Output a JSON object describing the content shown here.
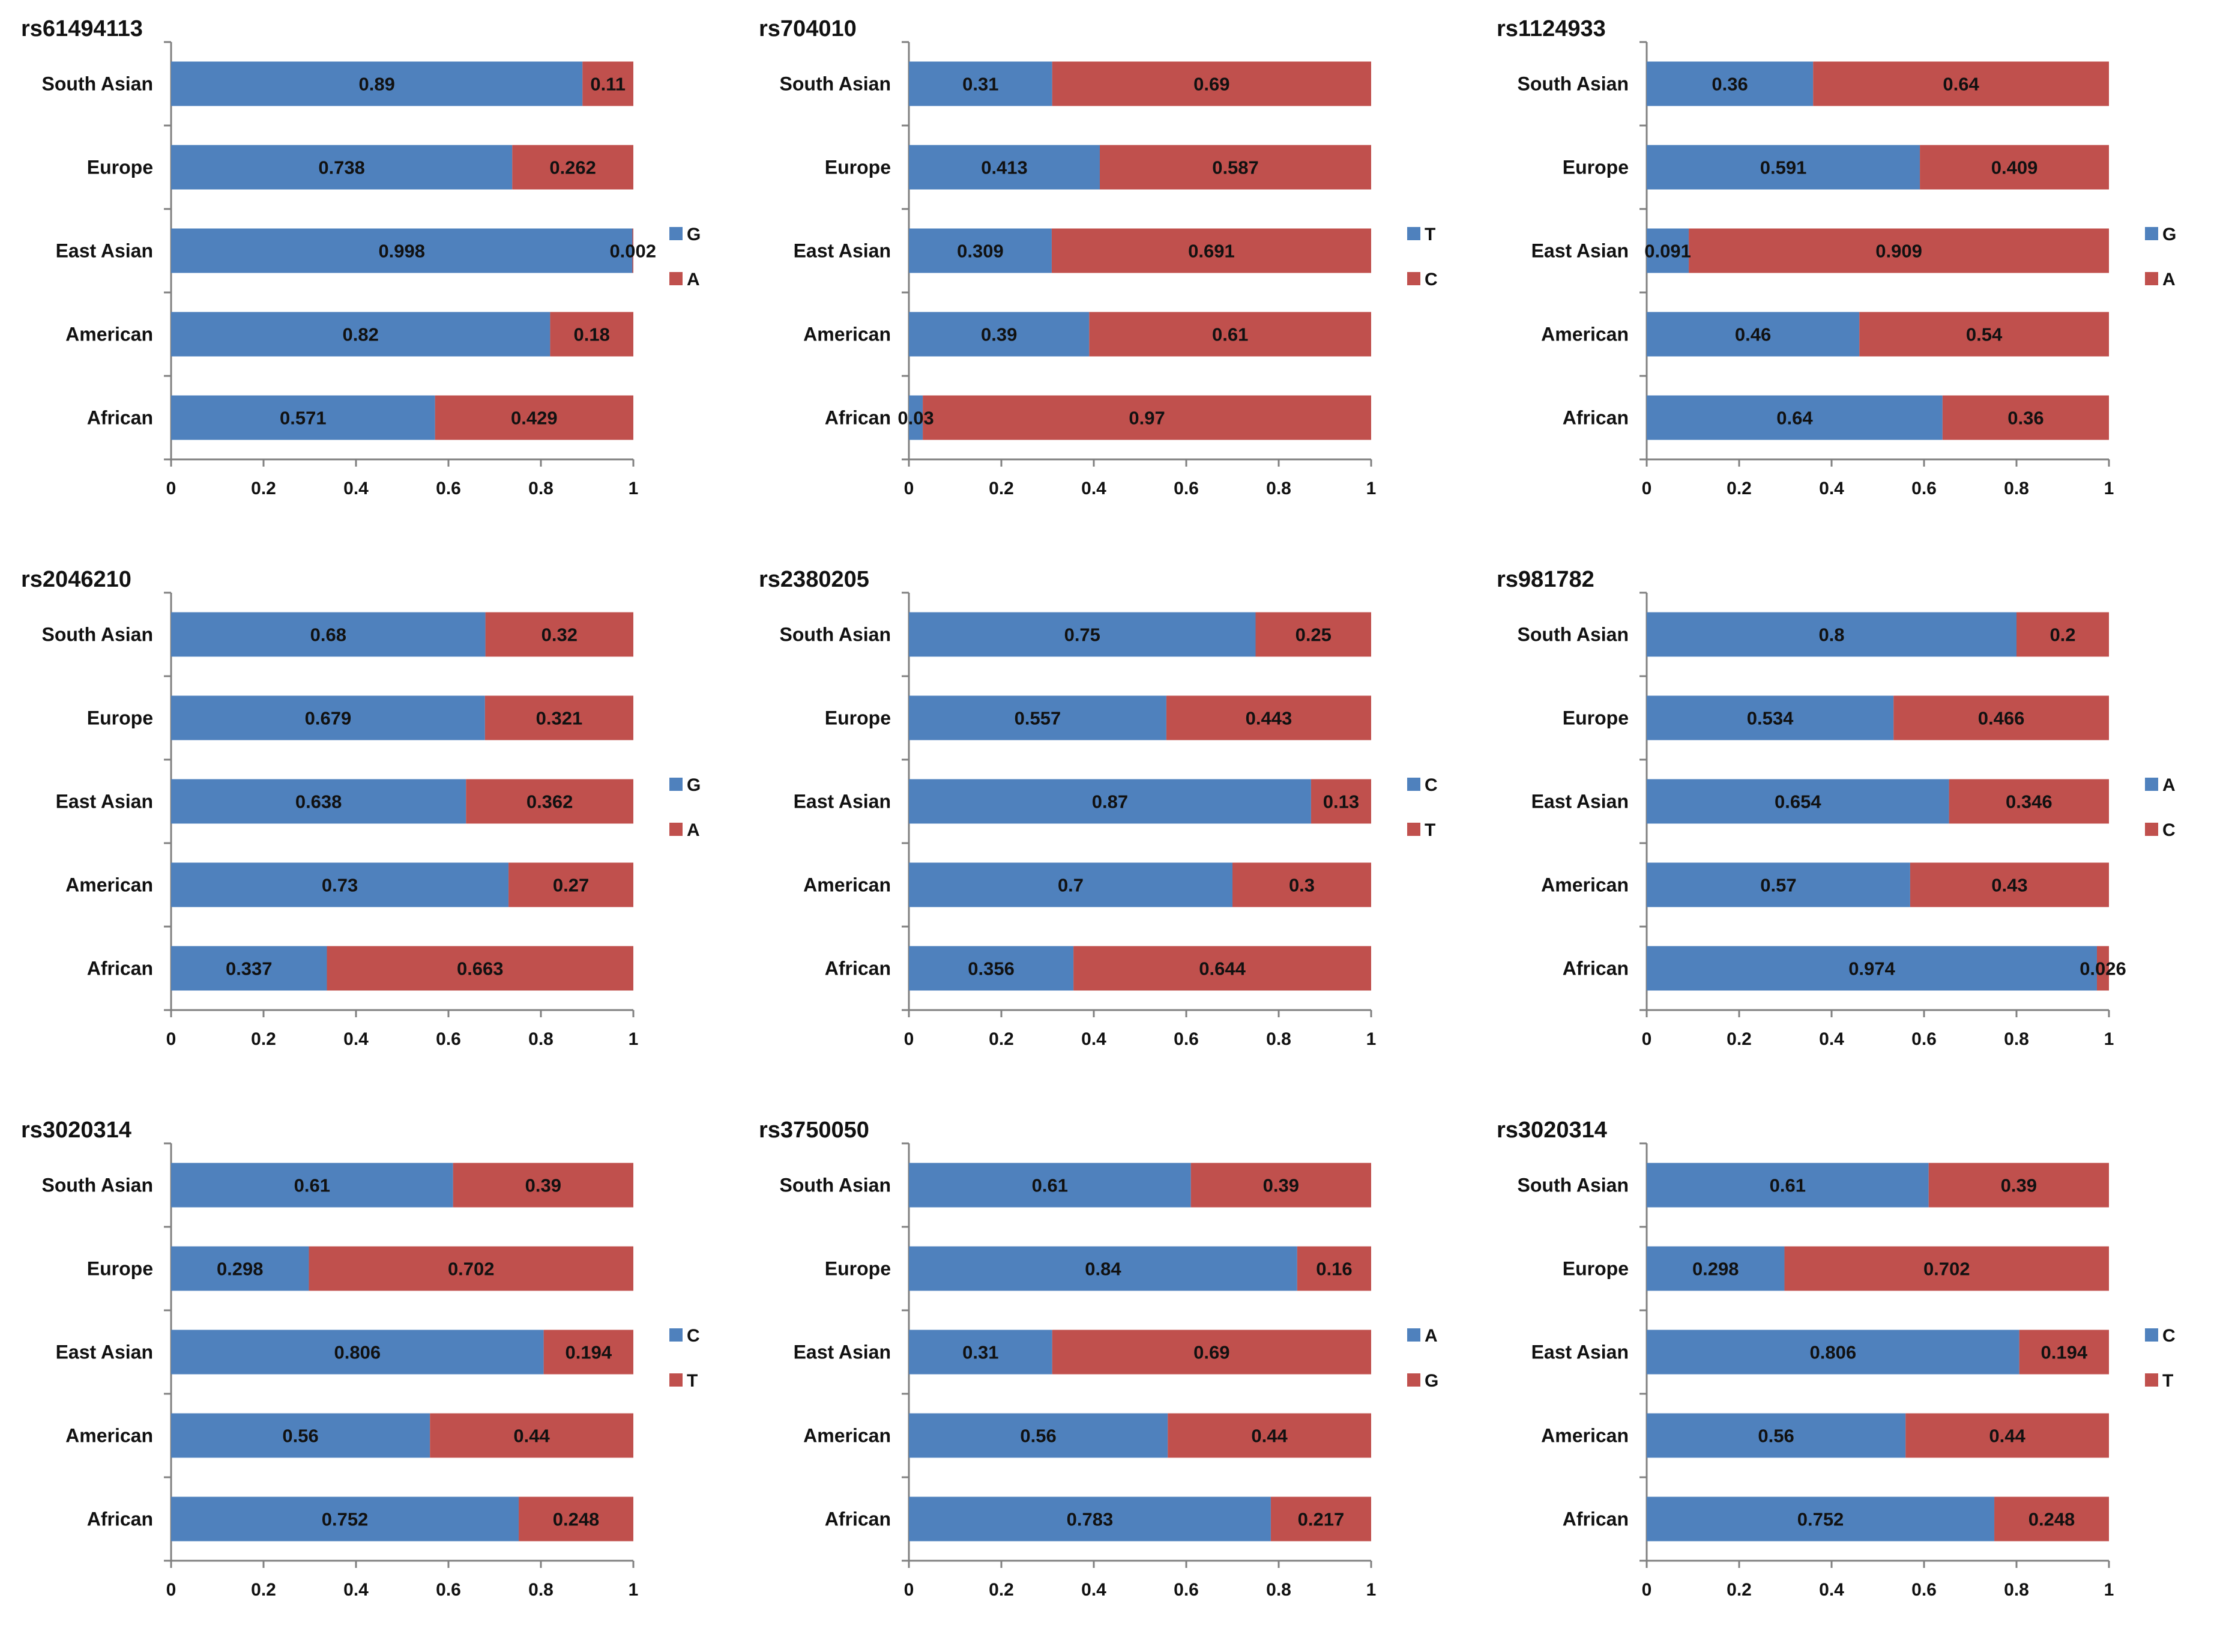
{
  "chart_data": [
    {
      "type": "bar",
      "orientation": "horizontal-stacked",
      "title": "rs61494113",
      "categories": [
        "South Asian",
        "Europe",
        "East Asian",
        "American",
        "African"
      ],
      "series": [
        {
          "name": "G",
          "values": [
            0.89,
            0.738,
            0.998,
            0.82,
            0.571
          ],
          "labels": [
            "0.89",
            "0.738",
            "0.998",
            "0.82",
            "0.571"
          ]
        },
        {
          "name": "A",
          "values": [
            0.11,
            0.262,
            0.002,
            0.18,
            0.429
          ],
          "labels": [
            "0.11",
            "0.262",
            "0.002",
            "0.18",
            "0.429"
          ]
        }
      ],
      "xlim": [
        0,
        1
      ],
      "xticks": [
        "0",
        "0.2",
        "0.4",
        "0.6",
        "0.8",
        "1"
      ],
      "legend": "right"
    },
    {
      "type": "bar",
      "orientation": "horizontal-stacked",
      "title": "rs704010",
      "categories": [
        "South Asian",
        "Europe",
        "East Asian",
        "American",
        "African"
      ],
      "series": [
        {
          "name": "T",
          "values": [
            0.31,
            0.413,
            0.309,
            0.39,
            0.03
          ],
          "labels": [
            "0.31",
            "0.413",
            "0.309",
            "0.39",
            "0.03"
          ]
        },
        {
          "name": "C",
          "values": [
            0.69,
            0.587,
            0.691,
            0.61,
            0.97
          ],
          "labels": [
            "0.69",
            "0.587",
            "0.691",
            "0.61",
            "0.97"
          ]
        }
      ],
      "xlim": [
        0,
        1
      ],
      "xticks": [
        "0",
        "0.2",
        "0.4",
        "0.6",
        "0.8",
        "1"
      ],
      "legend": "right"
    },
    {
      "type": "bar",
      "orientation": "horizontal-stacked",
      "title": "rs1124933",
      "categories": [
        "South Asian",
        "Europe",
        "East Asian",
        "American",
        "African"
      ],
      "series": [
        {
          "name": "G",
          "values": [
            0.36,
            0.591,
            0.091,
            0.46,
            0.64
          ],
          "labels": [
            "0.36",
            "0.591",
            "0.091",
            "0.46",
            "0.64"
          ]
        },
        {
          "name": "A",
          "values": [
            0.64,
            0.409,
            0.909,
            0.54,
            0.36
          ],
          "labels": [
            "0.64",
            "0.409",
            "0.909",
            "0.54",
            "0.36"
          ]
        }
      ],
      "xlim": [
        0,
        1
      ],
      "xticks": [
        "0",
        "0.2",
        "0.4",
        "0.6",
        "0.8",
        "1"
      ],
      "legend": "right"
    },
    {
      "type": "bar",
      "orientation": "horizontal-stacked",
      "title": "rs2046210",
      "categories": [
        "South Asian",
        "Europe",
        "East Asian",
        "American",
        "African"
      ],
      "series": [
        {
          "name": "G",
          "values": [
            0.68,
            0.679,
            0.638,
            0.73,
            0.337
          ],
          "labels": [
            "0.68",
            "0.679",
            "0.638",
            "0.73",
            "0.337"
          ]
        },
        {
          "name": "A",
          "values": [
            0.32,
            0.321,
            0.362,
            0.27,
            0.663
          ],
          "labels": [
            "0.32",
            "0.321",
            "0.362",
            "0.27",
            "0.663"
          ]
        }
      ],
      "xlim": [
        0,
        1
      ],
      "xticks": [
        "0",
        "0.2",
        "0.4",
        "0.6",
        "0.8",
        "1"
      ],
      "legend": "right"
    },
    {
      "type": "bar",
      "orientation": "horizontal-stacked",
      "title": "rs2380205",
      "categories": [
        "South Asian",
        "Europe",
        "East Asian",
        "American",
        "African"
      ],
      "series": [
        {
          "name": "C",
          "values": [
            0.75,
            0.557,
            0.87,
            0.7,
            0.356
          ],
          "labels": [
            "0.75",
            "0.557",
            "0.87",
            "0.7",
            "0.356"
          ]
        },
        {
          "name": "T",
          "values": [
            0.25,
            0.443,
            0.13,
            0.3,
            0.644
          ],
          "labels": [
            "0.25",
            "0.443",
            "0.13",
            "0.3",
            "0.644"
          ]
        }
      ],
      "xlim": [
        0,
        1
      ],
      "xticks": [
        "0",
        "0.2",
        "0.4",
        "0.6",
        "0.8",
        "1"
      ],
      "legend": "right"
    },
    {
      "type": "bar",
      "orientation": "horizontal-stacked",
      "title": "rs981782",
      "categories": [
        "South Asian",
        "Europe",
        "East Asian",
        "American",
        "African"
      ],
      "series": [
        {
          "name": "A",
          "values": [
            0.8,
            0.534,
            0.654,
            0.57,
            0.974
          ],
          "labels": [
            "0.8",
            "0.534",
            "0.654",
            "0.57",
            "0.974"
          ]
        },
        {
          "name": "C",
          "values": [
            0.2,
            0.466,
            0.346,
            0.43,
            0.026
          ],
          "labels": [
            "0.2",
            "0.466",
            "0.346",
            "0.43",
            "0.026"
          ]
        }
      ],
      "xlim": [
        0,
        1
      ],
      "xticks": [
        "0",
        "0.2",
        "0.4",
        "0.6",
        "0.8",
        "1"
      ],
      "legend": "right"
    },
    {
      "type": "bar",
      "orientation": "horizontal-stacked",
      "title": "rs3020314",
      "categories": [
        "South Asian",
        "Europe",
        "East Asian",
        "American",
        "African"
      ],
      "series": [
        {
          "name": "C",
          "values": [
            0.61,
            0.298,
            0.806,
            0.56,
            0.752
          ],
          "labels": [
            "0.61",
            "0.298",
            "0.806",
            "0.56",
            "0.752"
          ]
        },
        {
          "name": "T",
          "values": [
            0.39,
            0.702,
            0.194,
            0.44,
            0.248
          ],
          "labels": [
            "0.39",
            "0.702",
            "0.194",
            "0.44",
            "0.248"
          ]
        }
      ],
      "xlim": [
        0,
        1
      ],
      "xticks": [
        "0",
        "0.2",
        "0.4",
        "0.6",
        "0.8",
        "1"
      ],
      "legend": "right"
    },
    {
      "type": "bar",
      "orientation": "horizontal-stacked",
      "title": "rs3750050",
      "categories": [
        "South Asian",
        "Europe",
        "East Asian",
        "American",
        "African"
      ],
      "series": [
        {
          "name": "A",
          "values": [
            0.61,
            0.84,
            0.31,
            0.56,
            0.783
          ],
          "labels": [
            "0.61",
            "0.84",
            "0.31",
            "0.56",
            "0.783"
          ]
        },
        {
          "name": "G",
          "values": [
            0.39,
            0.16,
            0.69,
            0.44,
            0.217
          ],
          "labels": [
            "0.39",
            "0.16",
            "0.69",
            "0.44",
            "0.217"
          ]
        }
      ],
      "xlim": [
        0,
        1
      ],
      "xticks": [
        "0",
        "0.2",
        "0.4",
        "0.6",
        "0.8",
        "1"
      ],
      "legend": "right"
    },
    {
      "type": "bar",
      "orientation": "horizontal-stacked",
      "title": "rs3020314",
      "categories": [
        "South Asian",
        "Europe",
        "East Asian",
        "American",
        "African"
      ],
      "series": [
        {
          "name": "C",
          "values": [
            0.61,
            0.298,
            0.806,
            0.56,
            0.752
          ],
          "labels": [
            "0.61",
            "0.298",
            "0.806",
            "0.56",
            "0.752"
          ]
        },
        {
          "name": "T",
          "values": [
            0.39,
            0.702,
            0.194,
            0.44,
            0.248
          ],
          "labels": [
            "0.39",
            "0.702",
            "0.194",
            "0.44",
            "0.248"
          ]
        }
      ],
      "xlim": [
        0,
        1
      ],
      "xticks": [
        "0",
        "0.2",
        "0.4",
        "0.6",
        "0.8",
        "1"
      ],
      "legend": "right"
    }
  ],
  "colors": {
    "series1": "#4f81bd",
    "series2": "#c0504d",
    "axis": "#808080",
    "text": "#111111"
  }
}
